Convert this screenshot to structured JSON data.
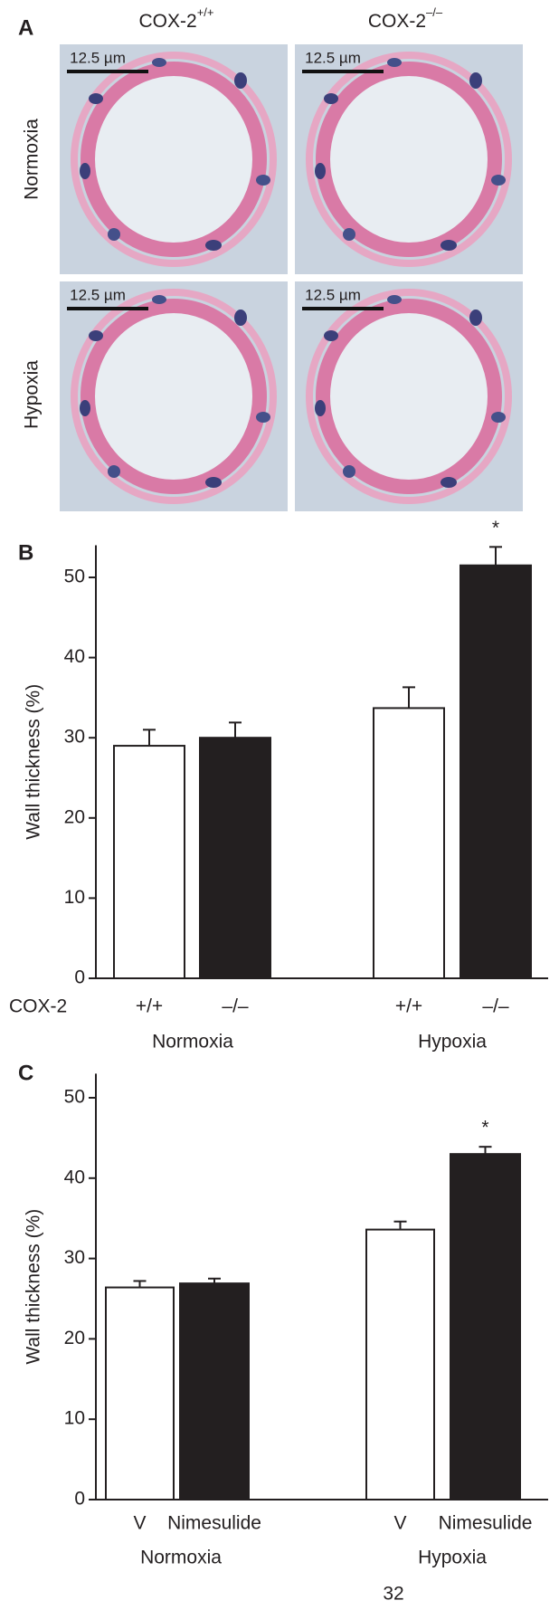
{
  "panel_a": {
    "label": "A",
    "columns": [
      {
        "base": "COX-2",
        "superscript": "+/+"
      },
      {
        "base": "COX-2",
        "superscript": "–/–"
      }
    ],
    "rows": [
      "Normoxia",
      "Hypoxia"
    ],
    "scale_bar": "12.5 µm"
  },
  "chart_data": [
    {
      "type": "bar",
      "panel_label": "B",
      "ylabel": "Wall thickness (%)",
      "categories": [
        "+/+",
        "–/–",
        "+/+",
        "–/–"
      ],
      "category_axis_label": "COX-2",
      "groups": [
        "Normoxia",
        "Hypoxia"
      ],
      "values": [
        29,
        30,
        33.7,
        51.5
      ],
      "errors": [
        2,
        1.9,
        2.6,
        2.3
      ],
      "colors": [
        "#ffffff",
        "#231f20",
        "#ffffff",
        "#231f20"
      ],
      "significance_marker": "*",
      "significant": [
        false,
        false,
        false,
        true
      ],
      "ylim": [
        0,
        54
      ],
      "yticks": [
        0,
        10,
        20,
        30,
        40,
        50
      ]
    },
    {
      "type": "bar",
      "panel_label": "C",
      "ylabel": "Wall thickness (%)",
      "categories": [
        "V",
        "Nimesulide",
        "V",
        "Nimesulide"
      ],
      "groups": [
        "Normoxia",
        "Hypoxia"
      ],
      "values": [
        26.4,
        26.9,
        33.6,
        43
      ],
      "errors": [
        0.8,
        0.6,
        1.0,
        0.9
      ],
      "colors": [
        "#ffffff",
        "#231f20",
        "#ffffff",
        "#231f20"
      ],
      "significance_marker": "*",
      "significant": [
        false,
        false,
        false,
        true
      ],
      "ylim": [
        0,
        53
      ],
      "yticks": [
        0,
        10,
        20,
        30,
        40,
        50
      ]
    }
  ],
  "page_number": "32"
}
